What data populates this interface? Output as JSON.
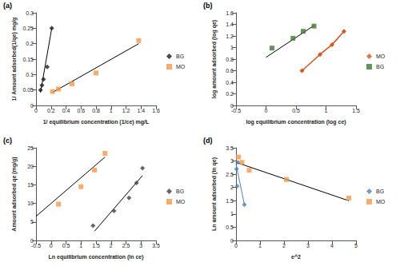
{
  "chart_data": [
    {
      "type": "scatter",
      "label": "(a)",
      "x_label": "1/ equilibrium concentration (1/ce) mg/L",
      "y_label": "1/ Amount adsorbed(1/qe) mg/g",
      "xlim": [
        0,
        1.6
      ],
      "xticks": [
        0,
        0.2,
        0.4,
        0.6,
        0.8,
        1,
        1.2,
        1.4,
        1.6
      ],
      "ylim": [
        0,
        0.3
      ],
      "yticks": [
        0,
        0.05,
        0.1,
        0.15,
        0.2,
        0.25,
        0.3
      ],
      "grid": false,
      "legend": "right",
      "series": [
        {
          "name": "BG",
          "color": "#1a1a1a",
          "marker": "diamond",
          "x": [
            0.06,
            0.08,
            0.1,
            0.15,
            0.21
          ],
          "values": [
            0.05,
            0.065,
            0.085,
            0.125,
            0.25
          ],
          "trend": {
            "color": "#000000",
            "x": [
              0.06,
              0.21
            ],
            "values": [
              0.042,
              0.25
            ]
          }
        },
        {
          "name": "MO",
          "color": "#f79646",
          "marker": "square",
          "x": [
            0.22,
            0.3,
            0.48,
            0.8,
            1.37
          ],
          "values": [
            0.045,
            0.053,
            0.07,
            0.105,
            0.21
          ],
          "trend": {
            "color": "#000000",
            "x": [
              0.22,
              1.37
            ],
            "values": [
              0.042,
              0.2
            ]
          }
        }
      ]
    },
    {
      "type": "scatter",
      "label": "(b)",
      "x_label": "log equilibrium concentration (log ce)",
      "y_label": "log amount adsorbed (log qe)",
      "xlim": [
        -0.5,
        1.5
      ],
      "xticks": [
        -0.5,
        0,
        0.5,
        1,
        1.5
      ],
      "ylim": [
        0,
        1.6
      ],
      "yticks": [
        0,
        0.2,
        0.4,
        0.6,
        0.8,
        1,
        1.2,
        1.4,
        1.6
      ],
      "grid": false,
      "legend": "right",
      "series": [
        {
          "name": "MO",
          "type": "line",
          "color": "#d9541e",
          "marker": "diamond",
          "x": [
            0.6,
            0.9,
            1.1,
            1.3
          ],
          "values": [
            0.6,
            0.88,
            1.05,
            1.28
          ]
        },
        {
          "name": "BG",
          "color": "#3c7a32",
          "marker": "square",
          "x": [
            0.1,
            0.45,
            0.62,
            0.8
          ],
          "values": [
            0.99,
            1.16,
            1.28,
            1.37
          ],
          "trend": {
            "color": "#000000",
            "x": [
              0,
              0.8
            ],
            "values": [
              0.83,
              1.38
            ]
          }
        }
      ]
    },
    {
      "type": "scatter",
      "label": "(c)",
      "x_label": "Ln equilibrium concentration (ln ce)",
      "y_label": "Amount adsorbed qe (mg/g)",
      "xlim": [
        -0.5,
        3.5
      ],
      "xticks": [
        -0.5,
        0,
        0.5,
        1,
        1.5,
        2,
        2.5,
        3,
        3.5
      ],
      "ylim": [
        0,
        25
      ],
      "yticks": [
        0,
        5,
        10,
        15,
        20,
        25
      ],
      "grid": false,
      "legend": "right",
      "series": [
        {
          "name": "BG",
          "color": "#404040",
          "marker": "diamond",
          "x": [
            1.4,
            2.1,
            2.6,
            2.85,
            3.05
          ],
          "values": [
            4,
            8,
            11.5,
            15.5,
            19.5
          ],
          "trend": {
            "color": "#000000",
            "x": [
              1.45,
              3.05
            ],
            "values": [
              2.5,
              17.5
            ]
          }
        },
        {
          "name": "MO",
          "color": "#f79646",
          "marker": "square",
          "x": [
            0.25,
            1,
            1.45,
            1.8
          ],
          "values": [
            9.8,
            14.5,
            19,
            23.5
          ],
          "trend": {
            "color": "#000000",
            "x": [
              -0.5,
              1.8
            ],
            "values": [
              6.5,
              22.5
            ]
          }
        }
      ]
    },
    {
      "type": "scatter",
      "label": "(d)",
      "x_label": "e^2",
      "y_label": "Ln amount adsorbed (ln qe)",
      "xlim": [
        0,
        5
      ],
      "xticks": [
        0,
        1,
        2,
        3,
        4,
        5
      ],
      "ylim": [
        0,
        3.5
      ],
      "yticks": [
        0,
        0.5,
        1,
        1.5,
        2,
        2.5,
        3,
        3.5
      ],
      "grid": false,
      "legend": "right",
      "series": [
        {
          "name": "BG",
          "color": "#4f81bd",
          "marker": "diamond",
          "x": [
            0.02,
            0.05,
            0.08,
            0.35
          ],
          "values": [
            2.7,
            2.05,
            2.95,
            1.35
          ],
          "trend": {
            "color": "#4f81bd",
            "x": [
              0,
              0.35
            ],
            "values": [
              2.9,
              1.35
            ]
          }
        },
        {
          "name": "MO",
          "color": "#f79646",
          "marker": "square",
          "x": [
            0.1,
            0.25,
            0.55,
            2.1,
            4.7
          ],
          "values": [
            3.15,
            2.95,
            2.65,
            2.3,
            1.6
          ],
          "trend": {
            "color": "#000000",
            "x": [
              0,
              4.7
            ],
            "values": [
              2.95,
              1.5
            ]
          }
        }
      ]
    }
  ]
}
